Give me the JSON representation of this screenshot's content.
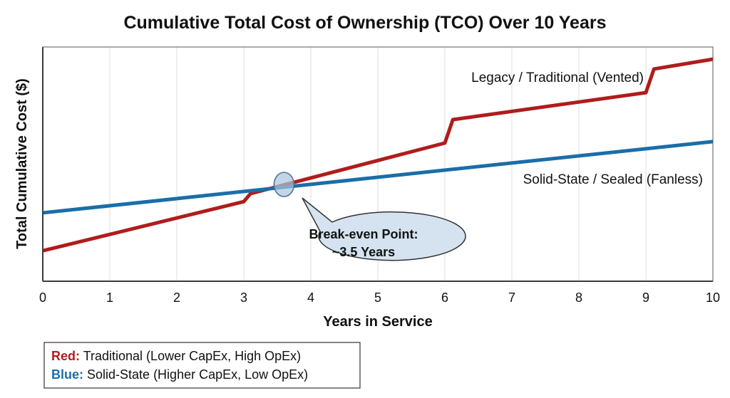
{
  "chart_data": {
    "type": "line",
    "title": "Cumulative Total Cost of Ownership (TCO) Over 10 Years",
    "xlabel": "Years in Service",
    "ylabel": "Total Cumulative Cost ($)",
    "xlim": [
      0,
      10
    ],
    "ylim": [
      0,
      100
    ],
    "xticks": [
      "0",
      "1",
      "2",
      "3",
      "4",
      "5",
      "6",
      "7",
      "8",
      "9",
      "10"
    ],
    "grid": "vertical",
    "series": [
      {
        "name": "Legacy / Traditional (Vented)",
        "color": "#b01c1c",
        "points": [
          [
            0,
            13
          ],
          [
            3,
            34
          ],
          [
            3.1,
            37.4
          ],
          [
            6,
            59
          ],
          [
            6.12,
            69
          ],
          [
            9,
            80.5
          ],
          [
            9.12,
            90.6
          ],
          [
            10,
            94.8
          ]
        ]
      },
      {
        "name": "Solid-State / Sealed (Fanless)",
        "color": "#1a6ea8",
        "points": [
          [
            0,
            29.2
          ],
          [
            10,
            59.6
          ]
        ]
      }
    ],
    "annotation": {
      "line1": "Break-even Point:",
      "line2": "~3.5 Years",
      "x": 3.6,
      "y": 41.3
    },
    "legend": {
      "placement": "bottom-left",
      "entries": [
        {
          "key": "Red:",
          "text": "Traditional (Lower CapEx, High OpEx)",
          "color": "#b01c1c"
        },
        {
          "key": "Blue:",
          "text": "Solid-State (Higher CapEx, Low OpEx)",
          "color": "#1a6ea8"
        }
      ]
    }
  }
}
